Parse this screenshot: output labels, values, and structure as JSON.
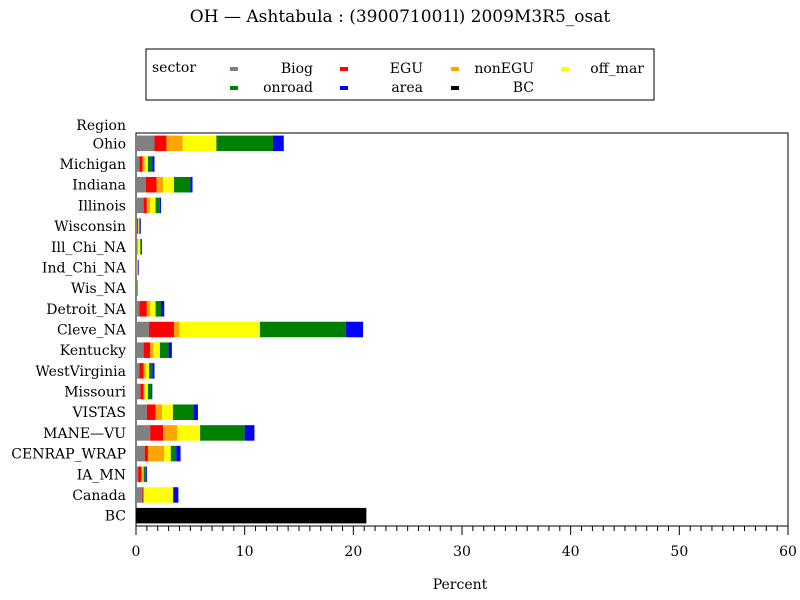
{
  "chart_data": {
    "type": "bar",
    "orientation": "horizontal",
    "stacked": true,
    "title": "OH  —  Ashtabula : (390071001l)  2009M3R5_osat",
    "xlabel": "Percent",
    "ylabel": "Region",
    "xlim": [
      0,
      60
    ],
    "xticks": [
      0,
      10,
      20,
      30,
      40,
      50,
      60
    ],
    "grid": false,
    "legend": {
      "placement": "top",
      "title": "sector",
      "entries": [
        {
          "key": "Biog",
          "label": "Biog",
          "color": "#808080"
        },
        {
          "key": "EGU",
          "label": "EGU",
          "color": "#ff0000"
        },
        {
          "key": "nonEGU",
          "label": "nonEGU",
          "color": "#ffa500"
        },
        {
          "key": "off_mar",
          "label": "off_mar",
          "color": "#ffff00"
        },
        {
          "key": "onroad",
          "label": "onroad",
          "color": "#008000"
        },
        {
          "key": "area",
          "label": "area",
          "color": "#0000ff"
        },
        {
          "key": "BC",
          "label": "BC",
          "color": "#000000"
        }
      ]
    },
    "categories": [
      "Ohio",
      "Michigan",
      "Indiana",
      "Illinois",
      "Wisconsin",
      "Ill_Chi_NA",
      "Ind_Chi_NA",
      "Wis_NA",
      "Detroit_NA",
      "Cleve_NA",
      "Kentucky",
      "WestVirginia",
      "Missouri",
      "VISTAS",
      "MANE—VU",
      "CENRAP_WRAP",
      "IA_MN",
      "Canada",
      "BC"
    ],
    "series": [
      {
        "name": "Biog",
        "values": [
          1.7,
          0.3,
          0.9,
          0.7,
          0.1,
          0.1,
          0.05,
          0.02,
          0.3,
          1.2,
          0.7,
          0.3,
          0.4,
          1.0,
          1.3,
          0.8,
          0.2,
          0.6,
          0
        ]
      },
      {
        "name": "EGU",
        "values": [
          1.1,
          0.3,
          1.0,
          0.3,
          0.1,
          0.0,
          0.0,
          0.0,
          0.7,
          2.3,
          0.6,
          0.4,
          0.3,
          0.8,
          1.2,
          0.3,
          0.3,
          0.1,
          0
        ]
      },
      {
        "name": "nonEGU",
        "values": [
          1.5,
          0.2,
          0.6,
          0.3,
          0.05,
          0.1,
          0.05,
          0.0,
          0.3,
          0.5,
          0.3,
          0.2,
          0.1,
          0.6,
          1.3,
          1.5,
          0.1,
          0.0,
          0
        ]
      },
      {
        "name": "off_mar",
        "values": [
          3.1,
          0.3,
          1.0,
          0.5,
          0.05,
          0.2,
          0.05,
          0.03,
          0.5,
          7.4,
          0.6,
          0.3,
          0.3,
          1.0,
          2.1,
          0.6,
          0.1,
          2.7,
          0
        ]
      },
      {
        "name": "onroad",
        "values": [
          5.2,
          0.4,
          1.5,
          0.4,
          0.1,
          0.1,
          0.05,
          0.03,
          0.5,
          7.9,
          0.8,
          0.3,
          0.3,
          1.9,
          4.1,
          0.5,
          0.2,
          0.1,
          0
        ]
      },
      {
        "name": "area",
        "values": [
          1.0,
          0.2,
          0.2,
          0.1,
          0.05,
          0.05,
          0.02,
          0.02,
          0.3,
          1.6,
          0.3,
          0.2,
          0.1,
          0.4,
          0.9,
          0.4,
          0.1,
          0.4,
          0
        ]
      },
      {
        "name": "BC",
        "values": [
          0,
          0,
          0,
          0,
          0,
          0,
          0,
          0,
          0,
          0,
          0,
          0,
          0,
          0,
          0,
          0,
          0,
          0,
          21.2
        ]
      }
    ]
  }
}
